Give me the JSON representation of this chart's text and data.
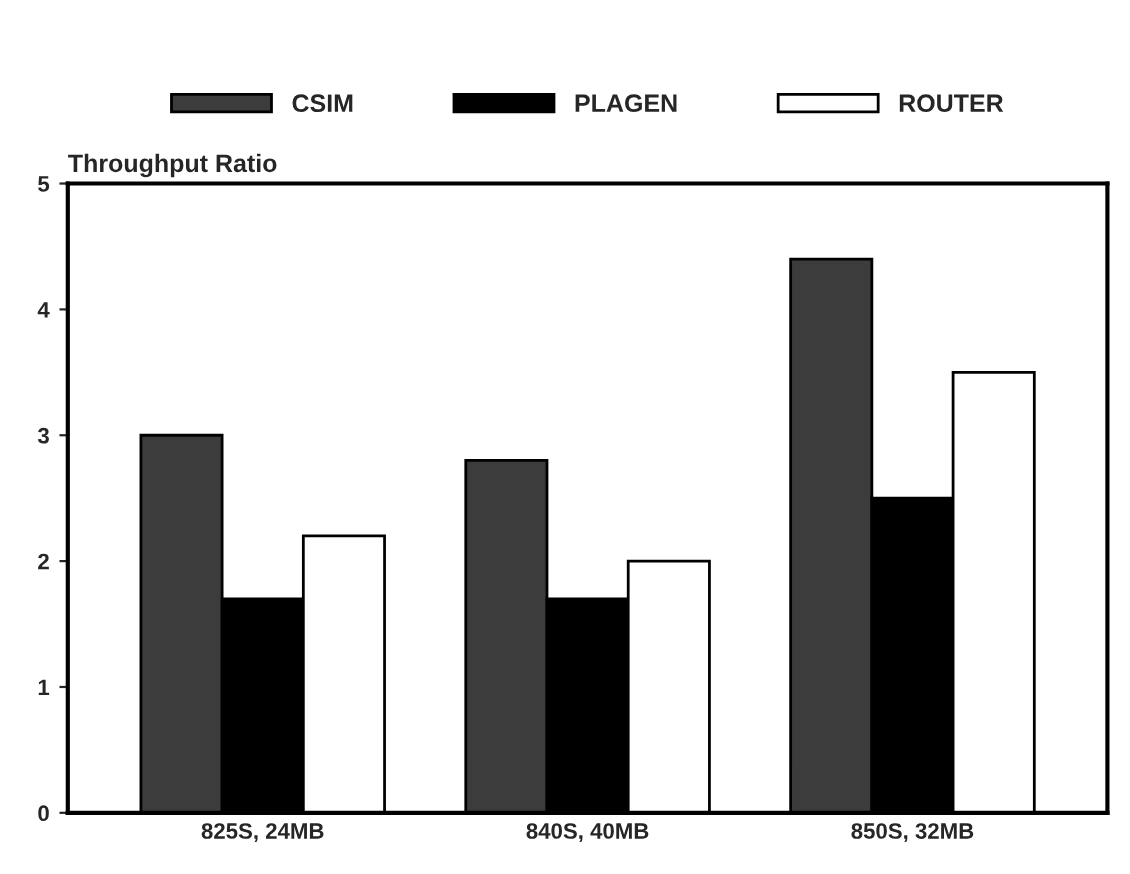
{
  "chart_data": {
    "type": "bar",
    "ylabel": "Throughput Ratio",
    "categories": [
      "825S, 24MB",
      "840S, 40MB",
      "850S, 32MB"
    ],
    "series": [
      {
        "name": "CSIM",
        "color": "#3c3c3c",
        "values": [
          3.0,
          2.8,
          4.4
        ]
      },
      {
        "name": "PLAGEN",
        "color": "#000000",
        "values": [
          1.7,
          1.7,
          2.5
        ]
      },
      {
        "name": "ROUTER",
        "color": "#ffffff",
        "values": [
          2.2,
          2.0,
          3.5
        ]
      }
    ],
    "ylim": [
      0,
      5
    ],
    "yticks": [
      0,
      1,
      2,
      3,
      4,
      5
    ],
    "grid": false,
    "legend": "top"
  }
}
